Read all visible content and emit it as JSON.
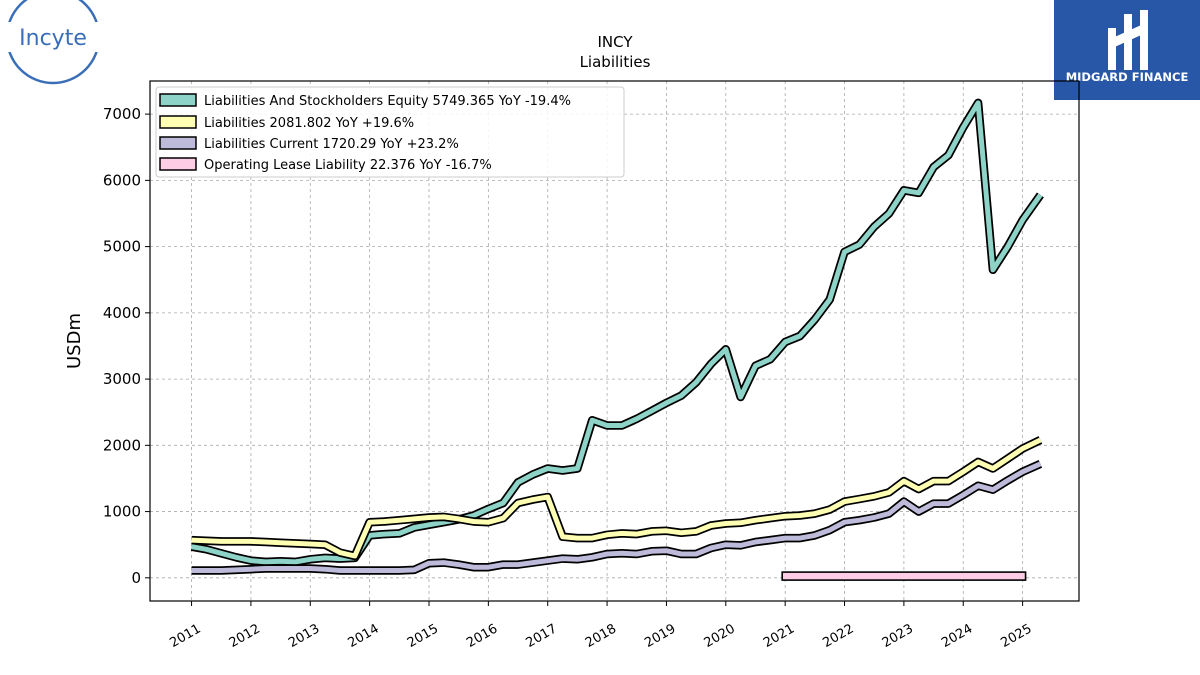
{
  "title": "INCY",
  "subtitle": "Liabilities",
  "logo_left": {
    "text": "Incyte",
    "color": "#3a6fb8"
  },
  "logo_right": {
    "text": "MIDGARD FINANCE",
    "background": "#2957a8"
  },
  "chart_data": {
    "type": "line",
    "ylabel": "USDm",
    "xlabel": "",
    "ylim": [
      -350,
      7500
    ],
    "xlim": [
      2010.3,
      2025.95
    ],
    "yticks": [
      0,
      1000,
      2000,
      3000,
      4000,
      5000,
      6000,
      7000
    ],
    "xticks": [
      "2011",
      "2012",
      "2013",
      "2014",
      "2015",
      "2016",
      "2017",
      "2018",
      "2019",
      "2020",
      "2021",
      "2022",
      "2023",
      "2024",
      "2025"
    ],
    "grid": true,
    "legend_position": "top-left",
    "series": [
      {
        "name": "Liabilities And Stockholders Equity  5749.365 YoY -19.4%",
        "color": "#8dd3c7",
        "x": [
          2011.0,
          2011.25,
          2011.5,
          2011.75,
          2012.0,
          2012.25,
          2012.5,
          2012.75,
          2013.0,
          2013.25,
          2013.5,
          2013.75,
          2014.0,
          2014.25,
          2014.5,
          2014.75,
          2015.0,
          2015.25,
          2015.5,
          2015.75,
          2016.0,
          2016.25,
          2016.5,
          2016.75,
          2017.0,
          2017.25,
          2017.5,
          2017.75,
          2018.0,
          2018.25,
          2018.5,
          2018.75,
          2019.0,
          2019.25,
          2019.5,
          2019.75,
          2020.0,
          2020.25,
          2020.5,
          2020.75,
          2021.0,
          2021.25,
          2021.5,
          2021.75,
          2022.0,
          2022.25,
          2022.5,
          2022.75,
          2023.0,
          2023.25,
          2023.5,
          2023.75,
          2024.0,
          2024.25,
          2024.5,
          2024.75,
          2025.0,
          2025.3
        ],
        "y": [
          470,
          430,
          370,
          310,
          260,
          240,
          250,
          240,
          280,
          300,
          290,
          300,
          640,
          660,
          670,
          760,
          800,
          840,
          880,
          940,
          1040,
          1130,
          1440,
          1560,
          1650,
          1620,
          1650,
          2380,
          2300,
          2300,
          2400,
          2520,
          2640,
          2750,
          2950,
          3230,
          3450,
          2730,
          3200,
          3300,
          3560,
          3650,
          3900,
          4200,
          4920,
          5030,
          5300,
          5500,
          5850,
          5810,
          6200,
          6380,
          6800,
          7170,
          4650,
          5000,
          5400,
          5780
        ]
      },
      {
        "name": "Liabilities  2081.802 YoY +19.6%",
        "color": "#ffffb3",
        "x": [
          2011.0,
          2011.25,
          2011.5,
          2011.75,
          2012.0,
          2012.25,
          2012.5,
          2012.75,
          2013.0,
          2013.25,
          2013.5,
          2013.75,
          2014.0,
          2014.25,
          2014.5,
          2014.75,
          2015.0,
          2015.25,
          2015.5,
          2015.75,
          2016.0,
          2016.25,
          2016.5,
          2016.75,
          2017.0,
          2017.25,
          2017.5,
          2017.75,
          2018.0,
          2018.25,
          2018.5,
          2018.75,
          2019.0,
          2019.25,
          2019.5,
          2019.75,
          2020.0,
          2020.25,
          2020.5,
          2020.75,
          2021.0,
          2021.25,
          2021.5,
          2021.75,
          2022.0,
          2022.25,
          2022.5,
          2022.75,
          2023.0,
          2023.25,
          2023.5,
          2023.75,
          2024.0,
          2024.25,
          2024.5,
          2024.75,
          2025.0,
          2025.3
        ],
        "y": [
          570,
          560,
          550,
          550,
          550,
          540,
          530,
          520,
          510,
          500,
          380,
          330,
          840,
          850,
          870,
          890,
          910,
          920,
          890,
          850,
          840,
          900,
          1130,
          1180,
          1220,
          620,
          600,
          600,
          650,
          670,
          660,
          700,
          710,
          680,
          700,
          790,
          820,
          830,
          870,
          900,
          930,
          940,
          970,
          1030,
          1150,
          1190,
          1230,
          1290,
          1460,
          1340,
          1460,
          1460,
          1600,
          1750,
          1650,
          1800,
          1950,
          2080
        ]
      },
      {
        "name": "Liabilities Current  1720.29 YoY +23.2%",
        "color": "#bebada",
        "x": [
          2011.0,
          2011.25,
          2011.5,
          2011.75,
          2012.0,
          2012.25,
          2012.5,
          2012.75,
          2013.0,
          2013.25,
          2013.5,
          2013.75,
          2014.0,
          2014.25,
          2014.5,
          2014.75,
          2015.0,
          2015.25,
          2015.5,
          2015.75,
          2016.0,
          2016.25,
          2016.5,
          2016.75,
          2017.0,
          2017.25,
          2017.5,
          2017.75,
          2018.0,
          2018.25,
          2018.5,
          2018.75,
          2019.0,
          2019.25,
          2019.5,
          2019.75,
          2020.0,
          2020.25,
          2020.5,
          2020.75,
          2021.0,
          2021.25,
          2021.5,
          2021.75,
          2022.0,
          2022.25,
          2022.5,
          2022.75,
          2023.0,
          2023.25,
          2023.5,
          2023.75,
          2024.0,
          2024.25,
          2024.5,
          2024.75,
          2025.0,
          2025.3
        ],
        "y": [
          110,
          110,
          110,
          120,
          130,
          140,
          140,
          140,
          140,
          130,
          110,
          110,
          110,
          110,
          110,
          120,
          220,
          230,
          200,
          160,
          160,
          200,
          200,
          230,
          260,
          290,
          280,
          310,
          360,
          370,
          360,
          400,
          410,
          360,
          360,
          450,
          500,
          490,
          540,
          570,
          600,
          600,
          640,
          720,
          840,
          870,
          910,
          970,
          1150,
          1000,
          1120,
          1120,
          1250,
          1390,
          1330,
          1470,
          1600,
          1720
        ]
      },
      {
        "name": "Operating Lease Liability  22.376 YoY -16.7%",
        "color": "#fccde5",
        "x": [
          2020.95,
          2025.05
        ],
        "y": [
          26,
          22
        ],
        "render_as_bar": true,
        "bar_height": 100
      }
    ]
  }
}
